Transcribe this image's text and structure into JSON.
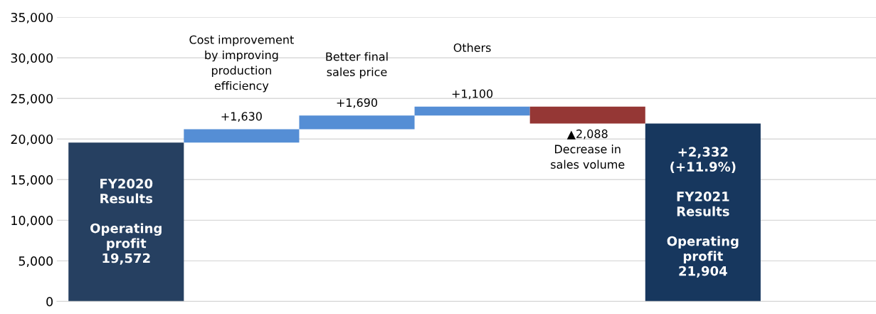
{
  "chart_data": {
    "type": "bar",
    "categories": [
      null,
      null,
      null,
      null,
      null,
      null,
      null
    ],
    "values": [
      19572,
      1630,
      1690,
      1100,
      -2088,
      21904,
      null
    ],
    "base": [
      0,
      19572,
      21202,
      22892,
      23992,
      0,
      null
    ],
    "colors": [
      "#264061",
      "#558ed5",
      "#558ed5",
      "#558ed5",
      "#953735",
      "#17375e",
      "#ffffff"
    ],
    "value_labels": [
      "FY2020\nResults\n\nOperating\nprofit\n19,572",
      "Cost improvement\nby improving\nproduction\nefficiency\n\n+1,630",
      "Better final\nsales price\n\n+1,690",
      "Others\n\n\n+1,100",
      "▲2,088\nDecrease in\nsales volume",
      "+2,332\n(+11.9%)\n\nFY2021\nResults\n\nOperating\nprofit\n21,904",
      null
    ],
    "ylim": [
      0,
      35000
    ],
    "yticks": [
      {
        "value": 0,
        "label": "0"
      },
      {
        "value": 5000,
        "label": "5,000"
      },
      {
        "value": 10000,
        "label": "10,000"
      },
      {
        "value": 15000,
        "label": "15,000"
      },
      {
        "value": 20000,
        "label": "20,000"
      },
      {
        "value": 25000,
        "label": "25,000"
      },
      {
        "value": 30000,
        "label": "30,000"
      },
      {
        "value": 35000,
        "label": "35,000"
      }
    ],
    "grid": "y",
    "tick_labels": "y"
  }
}
